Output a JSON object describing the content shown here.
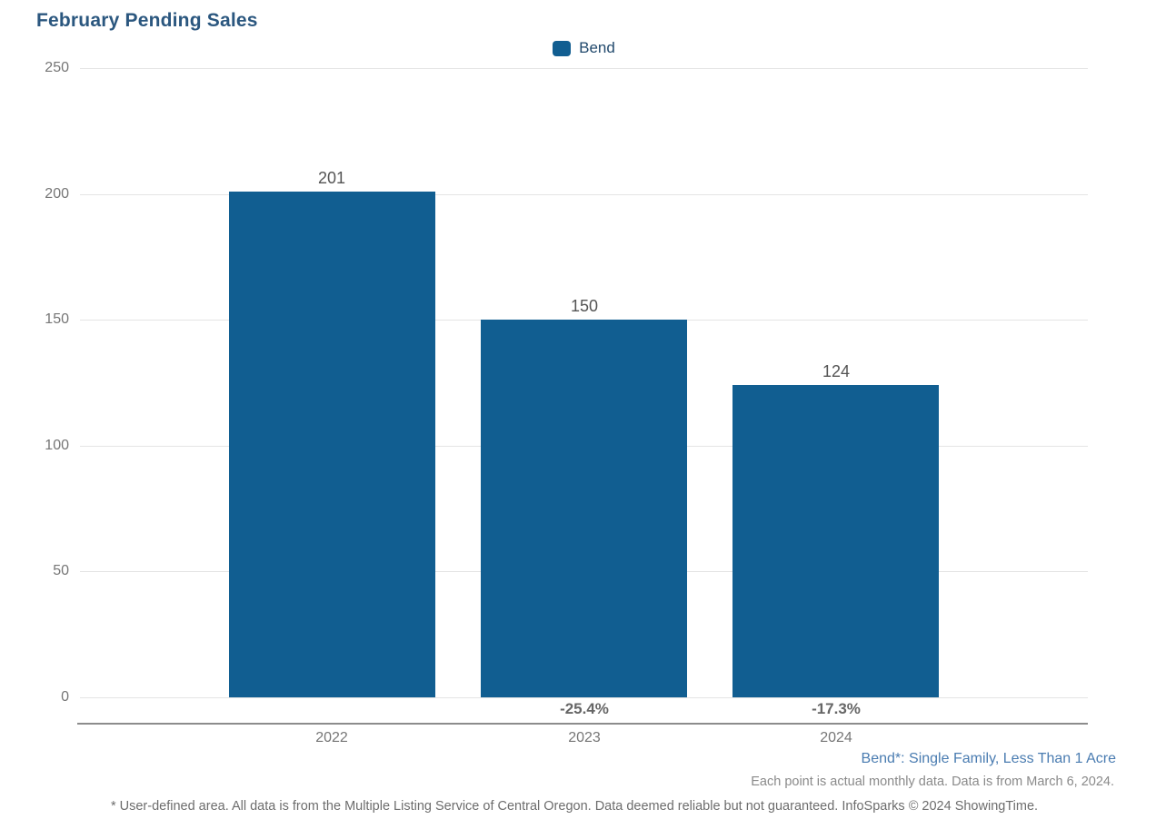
{
  "title": "February Pending Sales",
  "legend": {
    "label": "Bend"
  },
  "colors": {
    "bar": "#115e91",
    "title": "#2b577f",
    "gridline": "#e4e4e4",
    "axis_line": "#8c8c8c",
    "tick_text": "#767676",
    "value_text": "#545454",
    "pct_text": "#666666",
    "definition_text": "#4a7cb1"
  },
  "chart_data": {
    "type": "bar",
    "title": "February Pending Sales",
    "categories": [
      "2022",
      "2023",
      "2024"
    ],
    "series": [
      {
        "name": "Bend",
        "values": [
          201,
          150,
          124
        ],
        "value_labels": [
          "201",
          "150",
          "124"
        ],
        "pct_change_labels": [
          "",
          "-25.4%",
          "-17.3%"
        ],
        "color": "#115e91"
      }
    ],
    "xlabel": "",
    "ylabel": "",
    "ylim": [
      0,
      250
    ],
    "yticks": [
      0,
      50,
      100,
      150,
      200,
      250
    ],
    "grid": true,
    "legend_position": "top-center"
  },
  "footnotes": {
    "series_definition": "Bend*: Single Family, Less Than 1 Acre",
    "data_note": "Each point is actual monthly data. Data is from March 6, 2024.",
    "disclaimer": "* User-defined area. All data is from the Multiple Listing Service of Central Oregon. Data deemed reliable but not guaranteed. InfoSparks © 2024 ShowingTime."
  }
}
